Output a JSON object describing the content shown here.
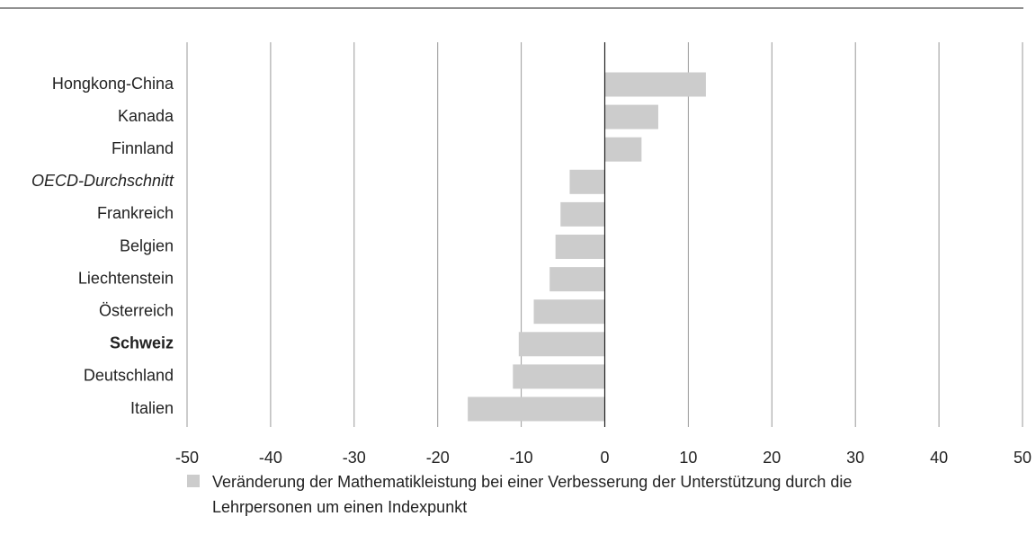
{
  "chart_data": {
    "type": "barh",
    "categories": [
      "Hongkong-China",
      "Kanada",
      "Finnland",
      "OECD-Durchschnitt",
      "Frankreich",
      "Belgien",
      "Liechtenstein",
      "Österreich",
      "Schweiz",
      "Deutschland",
      "Italien"
    ],
    "category_styles": [
      "normal",
      "normal",
      "normal",
      "italic",
      "normal",
      "normal",
      "normal",
      "normal",
      "bold",
      "normal",
      "normal"
    ],
    "series": [
      {
        "name": "Veränderung der Mathematikleistung bei einer Verbesserung der Unterstützung durch die Lehrpersonen um einen Indexpunkt",
        "color": "#cccccc",
        "values": [
          12.1,
          6.4,
          4.4,
          -4.2,
          -5.3,
          -5.9,
          -6.6,
          -8.5,
          -10.3,
          -11.0,
          -16.4
        ]
      }
    ],
    "xlim": [
      -50,
      50
    ],
    "xticks": [
      -50,
      -40,
      -30,
      -20,
      -10,
      0,
      10,
      20,
      30,
      40,
      50
    ],
    "grid": true
  }
}
